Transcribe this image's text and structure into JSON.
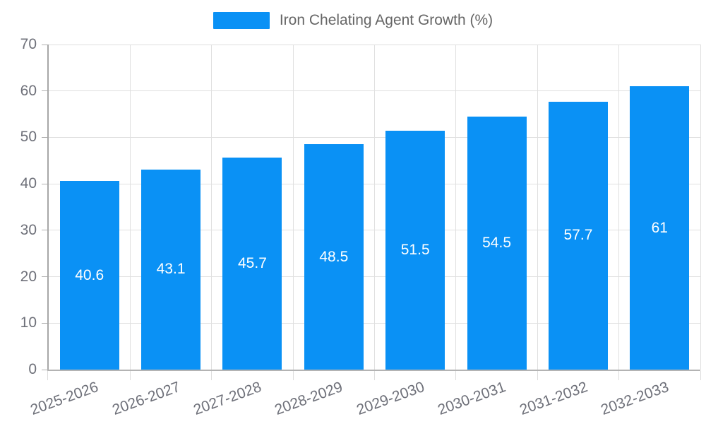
{
  "legend": {
    "series_label": "Iron Chelating Agent Growth (%)"
  },
  "chart_data": {
    "type": "bar",
    "title": "",
    "series": [
      {
        "name": "Iron Chelating Agent Growth (%)",
        "values": [
          40.6,
          43.1,
          45.7,
          48.5,
          51.5,
          54.5,
          57.7,
          61
        ]
      }
    ],
    "categories": [
      "2025-2026",
      "2026-2027",
      "2027-2028",
      "2028-2029",
      "2029-2030",
      "2030-2031",
      "2031-2032",
      "2032-2033"
    ],
    "data_labels": [
      "40.6",
      "43.1",
      "45.7",
      "48.5",
      "51.5",
      "54.5",
      "57.7",
      "61"
    ],
    "xlabel": "",
    "ylabel": "",
    "ylim": [
      0,
      70
    ],
    "yticks": [
      0,
      10,
      20,
      30,
      40,
      50,
      60,
      70
    ],
    "grid": true,
    "legend_position": "top-center",
    "x_label_rotation_deg": -20,
    "colors": {
      "bar": "#0a91f5",
      "bar_label": "#ffffff",
      "axis_text": "#6e7079",
      "legend_text": "#666666",
      "y_axis_line": "#a7a7a7",
      "x_axis_line": "#b3b3b3",
      "gridline": "#e0e0e0",
      "x_tick": "#dddddd",
      "y_tick": "#b0b0b0",
      "background": "#ffffff"
    }
  }
}
